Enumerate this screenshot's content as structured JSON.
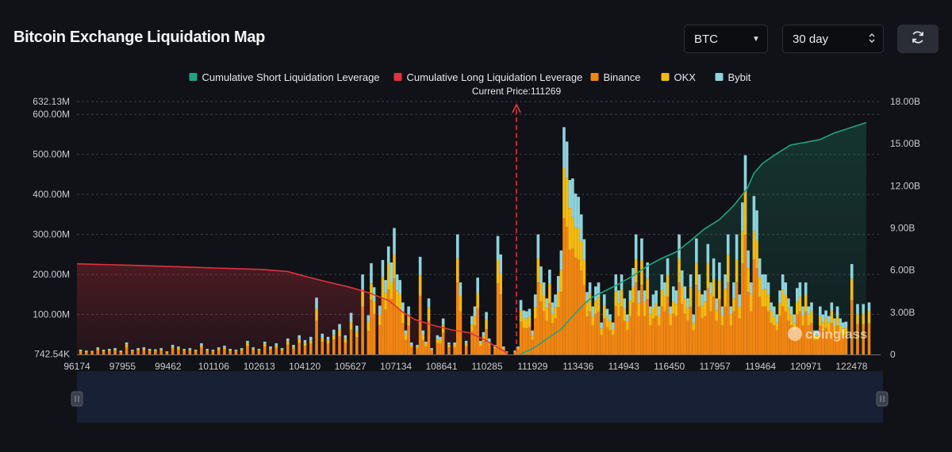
{
  "title": "Bitcoin Exchange Liquidation Map",
  "controls": {
    "symbol": "BTC",
    "range": "30 day",
    "refresh_icon": "refresh-icon"
  },
  "colors": {
    "short_cum": "#1fa37f",
    "long_cum": "#e0323f",
    "binance": "#f08512",
    "okx": "#f3bb12",
    "bybit": "#8fd3dc"
  },
  "watermark": "coinglass",
  "chart_data": {
    "type": "bar",
    "current_price_label": "Current Price:111269",
    "current_price": 111269,
    "legend": [
      {
        "name": "Cumulative Short Liquidation Leverage",
        "color": "#1fa37f",
        "kind": "line"
      },
      {
        "name": "Cumulative Long Liquidation Leverage",
        "color": "#e0323f",
        "kind": "line"
      },
      {
        "name": "Binance",
        "color": "#f08512",
        "kind": "bar"
      },
      {
        "name": "OKX",
        "color": "#f3bb12",
        "kind": "bar"
      },
      {
        "name": "Bybit",
        "color": "#8fd3dc",
        "kind": "bar"
      }
    ],
    "y_left_ticks": [
      "632.13M",
      "600.00M",
      "500.00M",
      "400.00M",
      "300.00M",
      "200.00M",
      "100.00M",
      "742.54K"
    ],
    "y_left_values": [
      632.13,
      600,
      500,
      400,
      300,
      200,
      100,
      0.74
    ],
    "y_left_range": [
      0,
      632.13
    ],
    "y_right_ticks": [
      "18.00B",
      "15.00B",
      "12.00B",
      "9.00B",
      "6.00B",
      "3.00B",
      "0"
    ],
    "y_right_values": [
      18,
      15,
      12,
      9,
      6,
      3,
      0
    ],
    "y_right_range": [
      0,
      18
    ],
    "x_ticks": [
      "96174",
      "97955",
      "99462",
      "101106",
      "102613",
      "104120",
      "105627",
      "107134",
      "108641",
      "110285",
      "111929",
      "113436",
      "114943",
      "116450",
      "117957",
      "119464",
      "120971",
      "122478"
    ],
    "x_range": [
      96174,
      124100
    ],
    "grid": true,
    "legend_position": "top",
    "bars": [
      [
        96300,
        12
      ],
      [
        96500,
        10
      ],
      [
        96700,
        9
      ],
      [
        96900,
        18
      ],
      [
        97100,
        12
      ],
      [
        97300,
        14
      ],
      [
        97500,
        16
      ],
      [
        97700,
        10
      ],
      [
        97900,
        30
      ],
      [
        98100,
        12
      ],
      [
        98300,
        16
      ],
      [
        98500,
        18
      ],
      [
        98700,
        14
      ],
      [
        98900,
        13
      ],
      [
        99100,
        16
      ],
      [
        99300,
        8
      ],
      [
        99500,
        24
      ],
      [
        99700,
        20
      ],
      [
        99900,
        14
      ],
      [
        100100,
        16
      ],
      [
        100300,
        12
      ],
      [
        100500,
        28
      ],
      [
        100700,
        14
      ],
      [
        100900,
        12
      ],
      [
        101100,
        18
      ],
      [
        101300,
        22
      ],
      [
        101500,
        14
      ],
      [
        101700,
        12
      ],
      [
        101900,
        16
      ],
      [
        102100,
        34
      ],
      [
        102300,
        18
      ],
      [
        102500,
        14
      ],
      [
        102700,
        32
      ],
      [
        102900,
        20
      ],
      [
        103100,
        28
      ],
      [
        103300,
        16
      ],
      [
        103500,
        40
      ],
      [
        103700,
        24
      ],
      [
        103900,
        48
      ],
      [
        104100,
        36
      ],
      [
        104300,
        44
      ],
      [
        104500,
        142
      ],
      [
        104700,
        52
      ],
      [
        104900,
        44
      ],
      [
        105100,
        62
      ],
      [
        105300,
        76
      ],
      [
        105500,
        48
      ],
      [
        105700,
        104
      ],
      [
        105900,
        72
      ],
      [
        106100,
        200
      ],
      [
        106300,
        98
      ],
      [
        106400,
        228
      ],
      [
        106500,
        168
      ],
      [
        106700,
        122
      ],
      [
        106800,
        236
      ],
      [
        106900,
        186
      ],
      [
        107000,
        270
      ],
      [
        107100,
        230
      ],
      [
        107200,
        316
      ],
      [
        107300,
        200
      ],
      [
        107400,
        186
      ],
      [
        107500,
        130
      ],
      [
        107600,
        60
      ],
      [
        107700,
        120
      ],
      [
        107800,
        30
      ],
      [
        108000,
        24
      ],
      [
        108100,
        244
      ],
      [
        108200,
        60
      ],
      [
        108300,
        32
      ],
      [
        108400,
        140
      ],
      [
        108500,
        16
      ],
      [
        108700,
        48
      ],
      [
        108800,
        44
      ],
      [
        108900,
        90
      ],
      [
        109100,
        30
      ],
      [
        109300,
        30
      ],
      [
        109400,
        300
      ],
      [
        109500,
        180
      ],
      [
        109700,
        34
      ],
      [
        109900,
        96
      ],
      [
        110000,
        120
      ],
      [
        110100,
        192
      ],
      [
        110200,
        34
      ],
      [
        110300,
        56
      ],
      [
        110400,
        106
      ],
      [
        110500,
        40
      ],
      [
        110700,
        24
      ],
      [
        110800,
        296
      ],
      [
        110900,
        250
      ],
      [
        111000,
        20
      ],
      [
        111100,
        8
      ],
      [
        111400,
        10
      ],
      [
        111500,
        20
      ],
      [
        111600,
        136
      ],
      [
        111700,
        110
      ],
      [
        111800,
        108
      ],
      [
        111900,
        114
      ],
      [
        112000,
        60
      ],
      [
        112100,
        150
      ],
      [
        112200,
        300
      ],
      [
        112300,
        220
      ],
      [
        112400,
        180
      ],
      [
        112500,
        140
      ],
      [
        112600,
        212
      ],
      [
        112700,
        130
      ],
      [
        112800,
        150
      ],
      [
        112900,
        196
      ],
      [
        113000,
        260
      ],
      [
        113100,
        568
      ],
      [
        113200,
        532
      ],
      [
        113300,
        436
      ],
      [
        113400,
        440
      ],
      [
        113500,
        402
      ],
      [
        113600,
        394
      ],
      [
        113700,
        350
      ],
      [
        113800,
        288
      ],
      [
        113900,
        156
      ],
      [
        114000,
        180
      ],
      [
        114100,
        120
      ],
      [
        114200,
        170
      ],
      [
        114300,
        180
      ],
      [
        114400,
        80
      ],
      [
        114500,
        150
      ],
      [
        114600,
        114
      ],
      [
        114700,
        100
      ],
      [
        114800,
        80
      ],
      [
        114900,
        200
      ],
      [
        115000,
        160
      ],
      [
        115100,
        200
      ],
      [
        115200,
        140
      ],
      [
        115300,
        100
      ],
      [
        115400,
        160
      ],
      [
        115500,
        216
      ],
      [
        115600,
        300
      ],
      [
        115700,
        160
      ],
      [
        115800,
        290
      ],
      [
        115900,
        160
      ],
      [
        116000,
        230
      ],
      [
        116100,
        120
      ],
      [
        116200,
        150
      ],
      [
        116300,
        160
      ],
      [
        116400,
        120
      ],
      [
        116500,
        200
      ],
      [
        116600,
        180
      ],
      [
        116700,
        240
      ],
      [
        116800,
        120
      ],
      [
        116900,
        170
      ],
      [
        117000,
        160
      ],
      [
        117100,
        300
      ],
      [
        117200,
        210
      ],
      [
        117300,
        170
      ],
      [
        117400,
        140
      ],
      [
        117500,
        200
      ],
      [
        117600,
        100
      ],
      [
        117700,
        290
      ],
      [
        117800,
        200
      ],
      [
        117900,
        150
      ],
      [
        118000,
        160
      ],
      [
        118100,
        276
      ],
      [
        118200,
        180
      ],
      [
        118300,
        240
      ],
      [
        118400,
        140
      ],
      [
        118500,
        230
      ],
      [
        118600,
        120
      ],
      [
        118700,
        200
      ],
      [
        118800,
        300
      ],
      [
        118900,
        120
      ],
      [
        119000,
        180
      ],
      [
        119100,
        300
      ],
      [
        119200,
        150
      ],
      [
        119300,
        380
      ],
      [
        119400,
        498
      ],
      [
        119500,
        260
      ],
      [
        119600,
        180
      ],
      [
        119700,
        396
      ],
      [
        119800,
        360
      ],
      [
        119900,
        240
      ],
      [
        120000,
        200
      ],
      [
        120100,
        200
      ],
      [
        120200,
        180
      ],
      [
        120300,
        130
      ],
      [
        120400,
        120
      ],
      [
        120500,
        100
      ],
      [
        120600,
        160
      ],
      [
        120700,
        200
      ],
      [
        120800,
        180
      ],
      [
        120900,
        140
      ],
      [
        121000,
        120
      ],
      [
        121100,
        100
      ],
      [
        121200,
        166
      ],
      [
        121300,
        180
      ],
      [
        121400,
        120
      ],
      [
        121500,
        180
      ],
      [
        121600,
        120
      ],
      [
        121700,
        130
      ],
      [
        121800,
        60
      ],
      [
        121900,
        60
      ],
      [
        122000,
        120
      ],
      [
        122100,
        100
      ],
      [
        122200,
        110
      ],
      [
        122300,
        96
      ],
      [
        122400,
        130
      ],
      [
        122500,
        90
      ],
      [
        122600,
        120
      ],
      [
        122700,
        90
      ],
      [
        122800,
        80
      ],
      [
        122900,
        82
      ],
      [
        123100,
        226
      ],
      [
        123300,
        126
      ],
      [
        123500,
        126
      ],
      [
        123700,
        130
      ]
    ],
    "long_cum": [
      [
        96174,
        6.45
      ],
      [
        98000,
        6.35
      ],
      [
        99500,
        6.25
      ],
      [
        101000,
        6.15
      ],
      [
        102600,
        6.05
      ],
      [
        103500,
        5.9
      ],
      [
        104120,
        5.55
      ],
      [
        104800,
        5.2
      ],
      [
        105627,
        4.8
      ],
      [
        106300,
        4.4
      ],
      [
        107000,
        3.85
      ],
      [
        107500,
        3.0
      ],
      [
        107900,
        2.5
      ],
      [
        108500,
        2.1
      ],
      [
        109200,
        1.75
      ],
      [
        109800,
        1.55
      ],
      [
        110285,
        1.1
      ],
      [
        110700,
        0.6
      ],
      [
        111000,
        0.25
      ],
      [
        111150,
        0.05
      ]
    ],
    "short_cum": [
      [
        111600,
        0.05
      ],
      [
        112000,
        0.4
      ],
      [
        112500,
        1.1
      ],
      [
        113000,
        1.8
      ],
      [
        113436,
        2.8
      ],
      [
        113800,
        3.6
      ],
      [
        114100,
        4.1
      ],
      [
        114600,
        4.6
      ],
      [
        114943,
        4.95
      ],
      [
        115500,
        5.6
      ],
      [
        116000,
        6.3
      ],
      [
        116450,
        6.8
      ],
      [
        117000,
        7.3
      ],
      [
        117500,
        8.1
      ],
      [
        117957,
        8.9
      ],
      [
        118500,
        9.6
      ],
      [
        119000,
        10.6
      ],
      [
        119464,
        11.8
      ],
      [
        119700,
        12.9
      ],
      [
        120000,
        13.6
      ],
      [
        120500,
        14.3
      ],
      [
        120971,
        14.9
      ],
      [
        121500,
        15.1
      ],
      [
        122000,
        15.3
      ],
      [
        122478,
        15.75
      ],
      [
        123000,
        16.1
      ],
      [
        123600,
        16.5
      ]
    ]
  }
}
